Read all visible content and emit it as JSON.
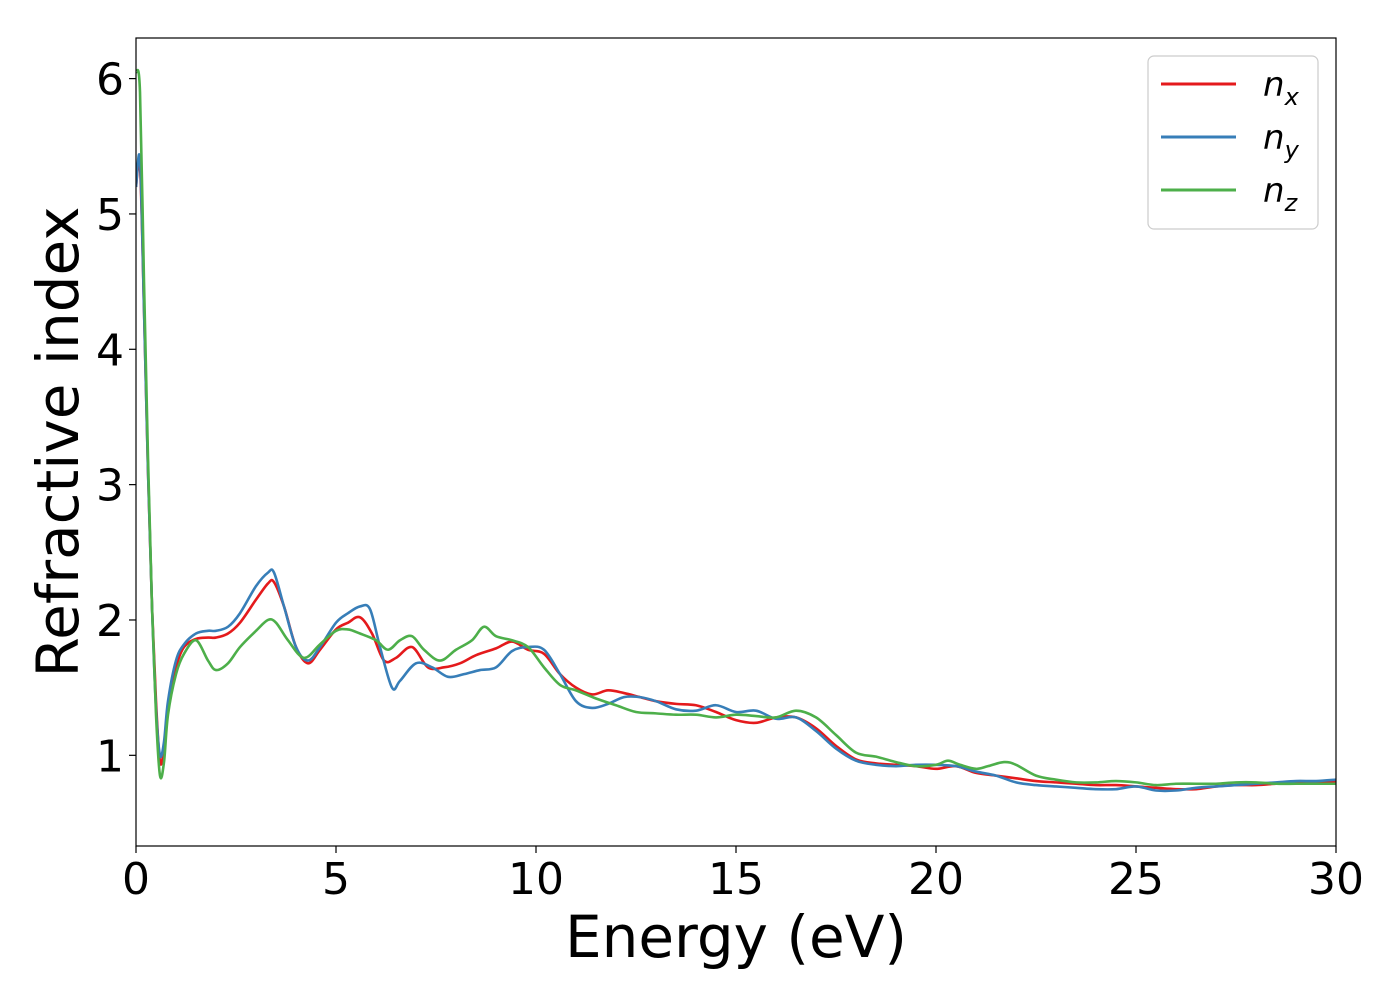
{
  "chart_data": {
    "type": "line",
    "title": "",
    "xlabel": "Energy (eV)",
    "ylabel": "Refractive index",
    "xlim": [
      0,
      30
    ],
    "ylim": [
      0.33,
      6.3
    ],
    "xticks": [
      0,
      5,
      10,
      15,
      20,
      25,
      30
    ],
    "yticks": [
      1,
      2,
      3,
      4,
      5,
      6
    ],
    "grid": false,
    "legend_position": "top-right",
    "series": [
      {
        "name": "n_x",
        "label_base": "n",
        "label_sub": "x",
        "color": "#e41a1c",
        "x": [
          0,
          0.1,
          0.2,
          0.3,
          0.4,
          0.5,
          0.6,
          0.7,
          0.8,
          1.0,
          1.2,
          1.5,
          1.8,
          2.0,
          2.3,
          2.6,
          3.0,
          3.3,
          3.45,
          3.7,
          4.0,
          4.3,
          4.6,
          5.0,
          5.3,
          5.6,
          5.9,
          6.2,
          6.5,
          6.9,
          7.3,
          7.7,
          8.1,
          8.5,
          9.0,
          9.4,
          9.8,
          10.2,
          10.6,
          11.0,
          11.4,
          11.8,
          12.2,
          12.6,
          13.0,
          13.5,
          14.0,
          14.5,
          15.0,
          15.5,
          16.0,
          16.5,
          17.0,
          17.5,
          18.0,
          18.5,
          19.0,
          19.5,
          20.0,
          20.5,
          21.0,
          21.5,
          22.0,
          22.5,
          23.0,
          23.5,
          24.0,
          24.5,
          25.0,
          25.5,
          26.0,
          26.5,
          27.0,
          27.5,
          28.0,
          28.5,
          29.0,
          29.5,
          30.0
        ],
        "y": [
          5.2,
          5.35,
          4.3,
          3.1,
          2.1,
          1.4,
          0.95,
          1.05,
          1.35,
          1.65,
          1.8,
          1.86,
          1.87,
          1.87,
          1.9,
          1.98,
          2.15,
          2.27,
          2.28,
          2.1,
          1.8,
          1.68,
          1.78,
          1.93,
          1.98,
          2.02,
          1.9,
          1.7,
          1.72,
          1.8,
          1.65,
          1.65,
          1.68,
          1.74,
          1.79,
          1.84,
          1.78,
          1.75,
          1.6,
          1.5,
          1.45,
          1.48,
          1.46,
          1.43,
          1.4,
          1.38,
          1.37,
          1.32,
          1.26,
          1.24,
          1.28,
          1.28,
          1.2,
          1.07,
          0.97,
          0.94,
          0.93,
          0.92,
          0.9,
          0.92,
          0.87,
          0.85,
          0.83,
          0.81,
          0.8,
          0.79,
          0.78,
          0.78,
          0.77,
          0.76,
          0.75,
          0.75,
          0.77,
          0.78,
          0.78,
          0.79,
          0.8,
          0.8,
          0.81
        ]
      },
      {
        "name": "n_y",
        "label_base": "n",
        "label_sub": "y",
        "color": "#377eb8",
        "x": [
          0,
          0.1,
          0.2,
          0.3,
          0.4,
          0.5,
          0.6,
          0.7,
          0.8,
          1.0,
          1.2,
          1.5,
          1.8,
          2.0,
          2.3,
          2.6,
          3.0,
          3.3,
          3.45,
          3.7,
          4.0,
          4.3,
          4.6,
          5.0,
          5.3,
          5.6,
          5.85,
          6.1,
          6.4,
          6.6,
          7.0,
          7.4,
          7.8,
          8.2,
          8.6,
          9.0,
          9.4,
          9.8,
          10.2,
          10.6,
          11.0,
          11.4,
          11.8,
          12.2,
          12.6,
          13.0,
          13.5,
          14.0,
          14.5,
          15.0,
          15.5,
          16.0,
          16.5,
          17.0,
          17.5,
          18.0,
          18.5,
          19.0,
          19.5,
          20.0,
          20.5,
          21.0,
          21.5,
          22.0,
          22.5,
          23.0,
          23.5,
          24.0,
          24.5,
          25.0,
          25.5,
          26.0,
          26.5,
          27.0,
          27.5,
          28.0,
          28.5,
          29.0,
          29.5,
          30.0
        ],
        "y": [
          5.2,
          5.4,
          4.3,
          3.1,
          2.1,
          1.35,
          1.0,
          1.1,
          1.4,
          1.7,
          1.82,
          1.9,
          1.92,
          1.92,
          1.95,
          2.05,
          2.25,
          2.35,
          2.35,
          2.1,
          1.8,
          1.7,
          1.8,
          1.98,
          2.05,
          2.1,
          2.08,
          1.8,
          1.5,
          1.55,
          1.68,
          1.65,
          1.58,
          1.6,
          1.63,
          1.65,
          1.77,
          1.8,
          1.78,
          1.6,
          1.4,
          1.35,
          1.38,
          1.43,
          1.43,
          1.4,
          1.34,
          1.33,
          1.37,
          1.32,
          1.33,
          1.27,
          1.28,
          1.18,
          1.05,
          0.96,
          0.93,
          0.92,
          0.93,
          0.93,
          0.92,
          0.88,
          0.85,
          0.8,
          0.78,
          0.77,
          0.76,
          0.75,
          0.75,
          0.77,
          0.74,
          0.74,
          0.76,
          0.77,
          0.78,
          0.79,
          0.8,
          0.81,
          0.81,
          0.82
        ]
      },
      {
        "name": "n_z",
        "label_base": "n",
        "label_sub": "z",
        "color": "#4daf4a",
        "x": [
          0,
          0.1,
          0.2,
          0.3,
          0.4,
          0.5,
          0.6,
          0.7,
          0.8,
          1.0,
          1.2,
          1.5,
          1.8,
          2.0,
          2.3,
          2.6,
          3.0,
          3.3,
          3.5,
          3.8,
          4.2,
          4.6,
          5.0,
          5.3,
          5.6,
          6.0,
          6.3,
          6.6,
          6.9,
          7.2,
          7.6,
          8.0,
          8.4,
          8.7,
          9.0,
          9.4,
          9.8,
          10.2,
          10.6,
          11.0,
          11.5,
          12.0,
          12.5,
          13.0,
          13.5,
          14.0,
          14.5,
          15.0,
          15.5,
          16.0,
          16.5,
          17.0,
          17.5,
          18.0,
          18.5,
          19.0,
          19.5,
          20.0,
          20.3,
          20.6,
          21.0,
          21.3,
          21.7,
          22.0,
          22.5,
          23.0,
          23.5,
          24.0,
          24.5,
          25.0,
          25.5,
          26.0,
          26.5,
          27.0,
          27.5,
          28.0,
          28.5,
          29.0,
          29.5,
          30.0
        ],
        "y": [
          6.05,
          5.9,
          4.5,
          3.2,
          2.1,
          1.3,
          0.85,
          0.95,
          1.3,
          1.6,
          1.75,
          1.85,
          1.7,
          1.63,
          1.68,
          1.8,
          1.92,
          2.0,
          1.98,
          1.85,
          1.72,
          1.82,
          1.92,
          1.93,
          1.9,
          1.85,
          1.78,
          1.85,
          1.88,
          1.78,
          1.7,
          1.78,
          1.85,
          1.95,
          1.88,
          1.85,
          1.8,
          1.65,
          1.52,
          1.48,
          1.42,
          1.37,
          1.32,
          1.31,
          1.3,
          1.3,
          1.28,
          1.3,
          1.29,
          1.28,
          1.33,
          1.28,
          1.15,
          1.02,
          0.99,
          0.95,
          0.92,
          0.93,
          0.96,
          0.93,
          0.9,
          0.92,
          0.95,
          0.93,
          0.85,
          0.82,
          0.8,
          0.8,
          0.81,
          0.8,
          0.78,
          0.79,
          0.79,
          0.79,
          0.8,
          0.8,
          0.79,
          0.79,
          0.79,
          0.79
        ]
      }
    ]
  }
}
